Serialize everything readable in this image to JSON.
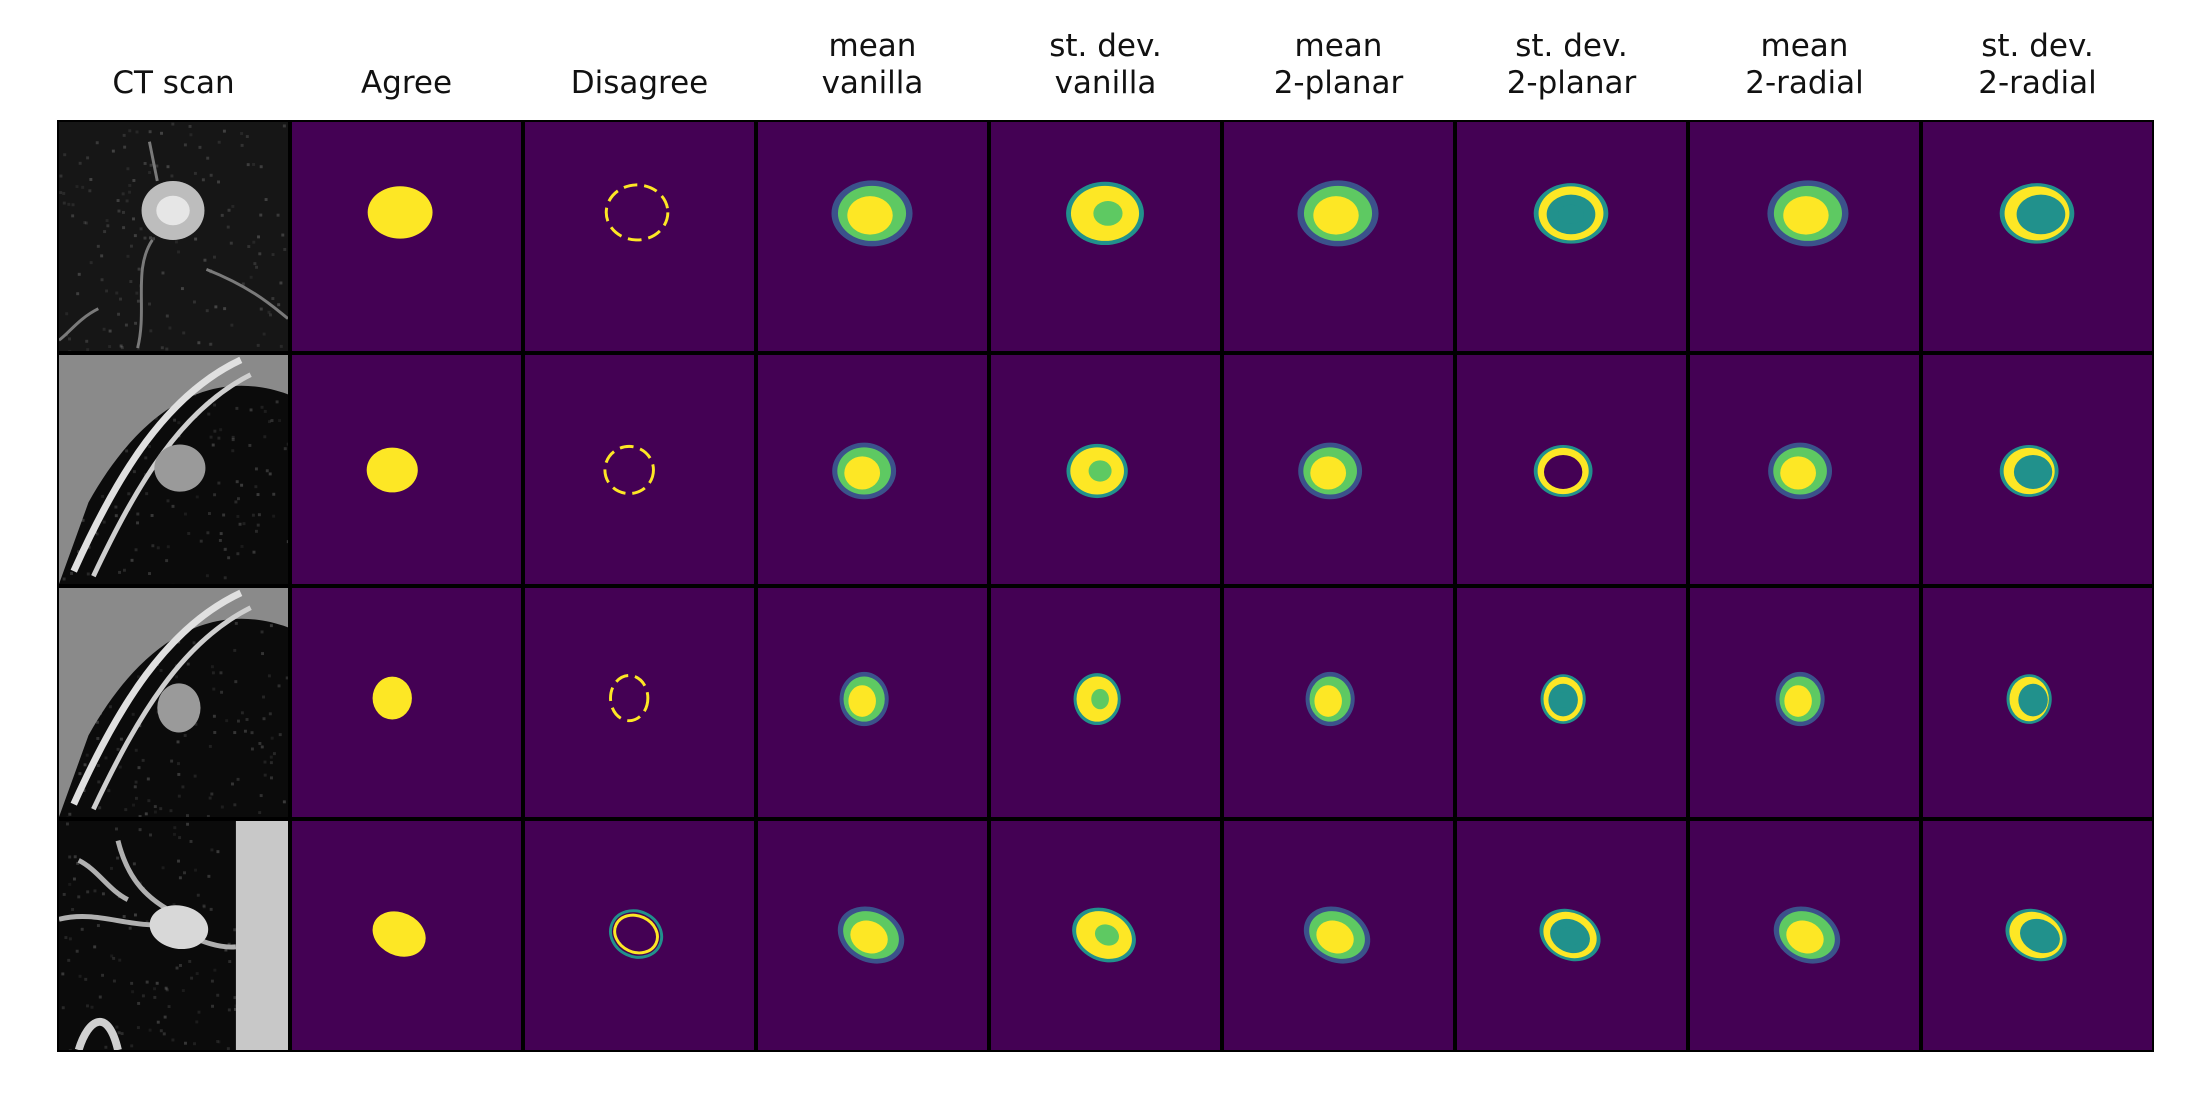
{
  "figure": {
    "columns": [
      "CT scan",
      "Agree",
      "Disagree",
      "mean\nvanilla",
      "st. dev.\nvanilla",
      "mean\n2-planar",
      "st. dev.\n2-planar",
      "mean\n2-radial",
      "st. dev.\n2-radial"
    ],
    "colormap": {
      "background": "#440154",
      "low": "#3b528b",
      "mid": "#21918c",
      "high": "#5ec962",
      "top": "#fde725"
    }
  }
}
